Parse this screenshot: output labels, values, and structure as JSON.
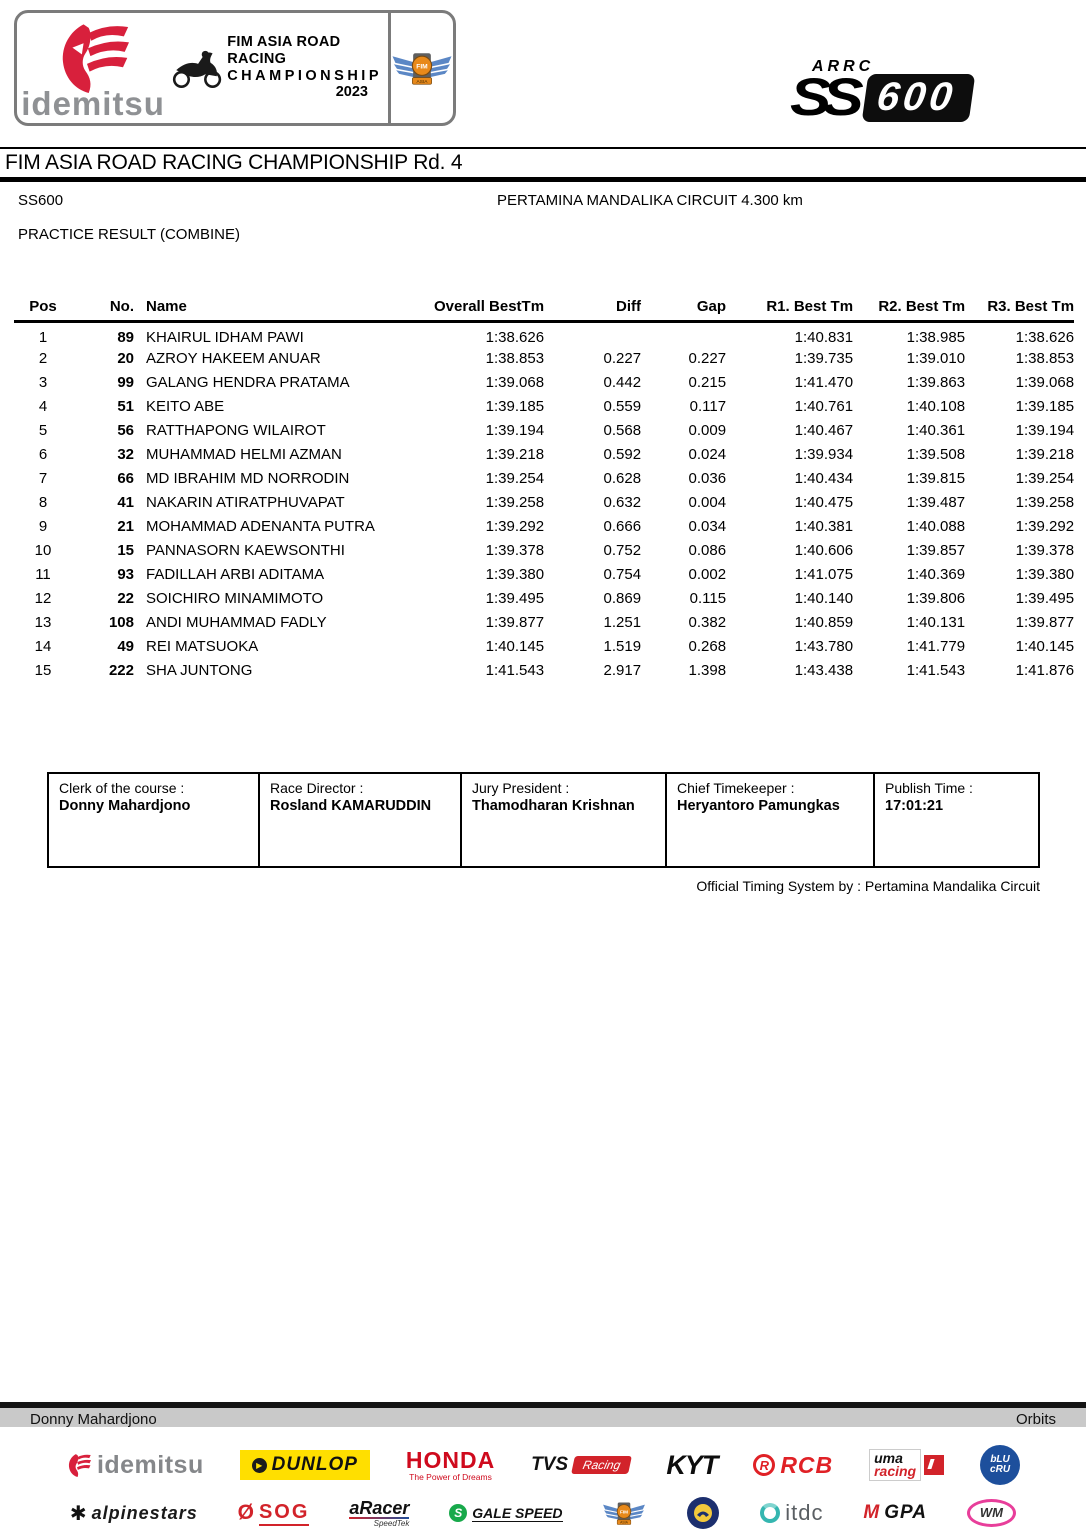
{
  "header": {
    "idemitsu_text": "idemitsu",
    "champ_line1": "FIM ASIA ROAD RACING",
    "champ_line2": "CHAMPIONSHIP",
    "champ_year": "2023",
    "fim_badge": {
      "fim": "FIM",
      "asia": "ASIA"
    },
    "class_logo": {
      "arrc": "ARRC",
      "ss": "SS",
      "num": "600"
    }
  },
  "title": {
    "event": "FIM ASIA ROAD RACING CHAMPIONSHIP Rd. 4",
    "class_name": "SS600",
    "circuit": "PERTAMINA MANDALIKA CIRCUIT 4.300 km",
    "session": "PRACTICE RESULT (COMBINE)"
  },
  "results": {
    "columns": [
      "Pos",
      "No.",
      "Name",
      "Overall BestTm",
      "Diff",
      "Gap",
      "R1. Best Tm",
      "R2. Best Tm",
      "R3. Best Tm"
    ],
    "rows": [
      {
        "pos": "1",
        "no": "89",
        "name": "KHAIRUL IDHAM  PAWI",
        "best": "1:38.626",
        "diff": "",
        "gap": "",
        "r1": "1:40.831",
        "r2": "1:38.985",
        "r3": "1:38.626"
      },
      {
        "pos": "2",
        "no": "20",
        "name": "AZROY HAKEEM ANUAR",
        "best": "1:38.853",
        "diff": "0.227",
        "gap": "0.227",
        "r1": "1:39.735",
        "r2": "1:39.010",
        "r3": "1:38.853"
      },
      {
        "pos": "3",
        "no": "99",
        "name": "GALANG HENDRA PRATAMA",
        "best": "1:39.068",
        "diff": "0.442",
        "gap": "0.215",
        "r1": "1:41.470",
        "r2": "1:39.863",
        "r3": "1:39.068"
      },
      {
        "pos": "4",
        "no": "51",
        "name": "KEITO ABE",
        "best": "1:39.185",
        "diff": "0.559",
        "gap": "0.117",
        "r1": "1:40.761",
        "r2": "1:40.108",
        "r3": "1:39.185"
      },
      {
        "pos": "5",
        "no": "56",
        "name": "RATTHAPONG WILAIROT",
        "best": "1:39.194",
        "diff": "0.568",
        "gap": "0.009",
        "r1": "1:40.467",
        "r2": "1:40.361",
        "r3": "1:39.194"
      },
      {
        "pos": "6",
        "no": "32",
        "name": "MUHAMMAD HELMI AZMAN",
        "best": "1:39.218",
        "diff": "0.592",
        "gap": "0.024",
        "r1": "1:39.934",
        "r2": "1:39.508",
        "r3": "1:39.218"
      },
      {
        "pos": "7",
        "no": "66",
        "name": "MD IBRAHIM MD NORRODIN",
        "best": "1:39.254",
        "diff": "0.628",
        "gap": "0.036",
        "r1": "1:40.434",
        "r2": "1:39.815",
        "r3": "1:39.254"
      },
      {
        "pos": "8",
        "no": "41",
        "name": "NAKARIN ATIRATPHUVAPAT",
        "best": "1:39.258",
        "diff": "0.632",
        "gap": "0.004",
        "r1": "1:40.475",
        "r2": "1:39.487",
        "r3": "1:39.258"
      },
      {
        "pos": "9",
        "no": "21",
        "name": "MOHAMMAD ADENANTA PUTRA",
        "best": "1:39.292",
        "diff": "0.666",
        "gap": "0.034",
        "r1": "1:40.381",
        "r2": "1:40.088",
        "r3": "1:39.292"
      },
      {
        "pos": "10",
        "no": "15",
        "name": "PANNASORN KAEWSONTHI",
        "best": "1:39.378",
        "diff": "0.752",
        "gap": "0.086",
        "r1": "1:40.606",
        "r2": "1:39.857",
        "r3": "1:39.378"
      },
      {
        "pos": "11",
        "no": "93",
        "name": "FADILLAH ARBI ADITAMA",
        "best": "1:39.380",
        "diff": "0.754",
        "gap": "0.002",
        "r1": "1:41.075",
        "r2": "1:40.369",
        "r3": "1:39.380"
      },
      {
        "pos": "12",
        "no": "22",
        "name": "SOICHIRO MINAMIMOTO",
        "best": "1:39.495",
        "diff": "0.869",
        "gap": "0.115",
        "r1": "1:40.140",
        "r2": "1:39.806",
        "r3": "1:39.495"
      },
      {
        "pos": "13",
        "no": "108",
        "name": "ANDI MUHAMMAD FADLY",
        "best": "1:39.877",
        "diff": "1.251",
        "gap": "0.382",
        "r1": "1:40.859",
        "r2": "1:40.131",
        "r3": "1:39.877"
      },
      {
        "pos": "14",
        "no": "49",
        "name": "REI MATSUOKA",
        "best": "1:40.145",
        "diff": "1.519",
        "gap": "0.268",
        "r1": "1:43.780",
        "r2": "1:41.779",
        "r3": "1:40.145"
      },
      {
        "pos": "15",
        "no": "222",
        "name": "SHA JUNTONG",
        "best": "1:41.543",
        "diff": "2.917",
        "gap": "1.398",
        "r1": "1:43.438",
        "r2": "1:41.543",
        "r3": "1:41.876"
      }
    ]
  },
  "officials": [
    {
      "label": "Clerk of the course :",
      "value": "Donny Mahardjono"
    },
    {
      "label": "Race Director :",
      "value": "Rosland KAMARUDDIN"
    },
    {
      "label": "Jury President :",
      "value": "Thamodharan Krishnan"
    },
    {
      "label": "Chief Timekeeper :",
      "value": "Heryantoro Pamungkas"
    },
    {
      "label": "Publish Time :",
      "value": "17:01:21"
    }
  ],
  "timing_note": "Official Timing System by : Pertamina Mandalika Circuit",
  "footer": {
    "left": "Donny Mahardjono",
    "right": "Orbits"
  },
  "sponsors": {
    "idemitsu": "idemitsu",
    "dunlop": "DUNLOP",
    "honda": "HONDA",
    "honda_tagline": "The Power of Dreams",
    "tvs": "TVS",
    "tvs_sub": "Racing",
    "kyt": "KYT",
    "rcb": "RCB",
    "uma_l1": "uma",
    "uma_l2": "racing",
    "blucru_l1": "bLU",
    "blucru_l2": "cRU",
    "alpinestars": "alpinestars",
    "sog": "SOG",
    "aracer": "aRacer",
    "aracer_sub": "SpeedTek",
    "galespeed": "GALE SPEED",
    "fim_badge": {
      "fim": "FIM",
      "asia": "ASIA"
    },
    "itdc": "itdc",
    "mgpa_m": "M",
    "mgpa_rest": "GPA",
    "wm": "WM"
  },
  "icons": {
    "alpinestars_star": "✱",
    "sog_slash": "Ø",
    "dunlop_arrow": "▶",
    "gs_letter": "S",
    "rcb_letter": "R"
  }
}
